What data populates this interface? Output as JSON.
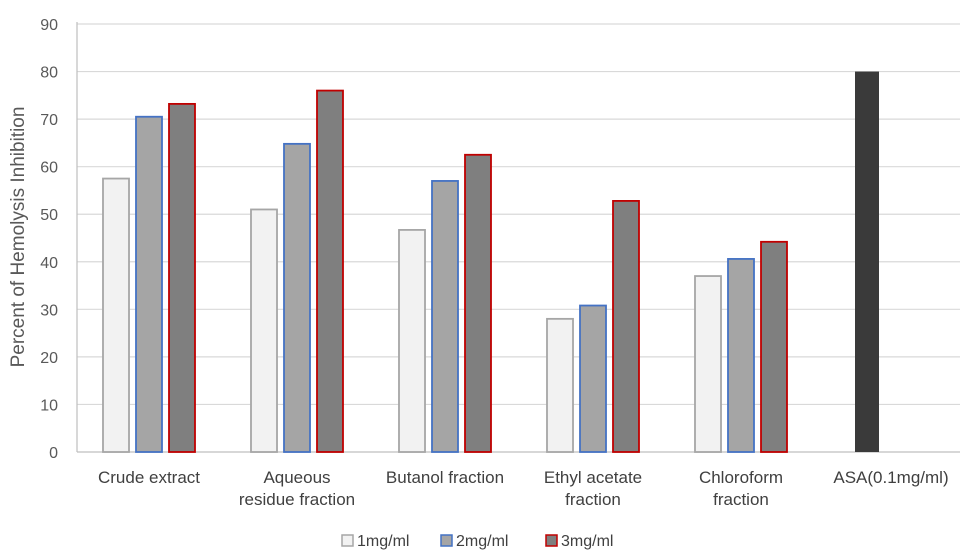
{
  "chart_data": {
    "type": "bar",
    "categories": [
      [
        "Crude extract"
      ],
      [
        "Aqueous",
        "residue fraction"
      ],
      [
        "Butanol fraction"
      ],
      [
        "Ethyl acetate",
        "fraction"
      ],
      [
        "Chloroform",
        "fraction"
      ],
      [
        "ASA(0.1mg/ml)"
      ]
    ],
    "series": [
      {
        "name": "1mg/ml",
        "fill": "#f2f2f2",
        "stroke": "#a6a6a6",
        "values": [
          57.5,
          51,
          46.7,
          28,
          37,
          null
        ]
      },
      {
        "name": "2mg/ml",
        "fill": "#a5a5a5",
        "stroke": "#4472c4",
        "values": [
          70.5,
          64.8,
          57,
          30.8,
          40.6,
          null
        ]
      },
      {
        "name": "3mg/ml",
        "fill": "#7f7f7f",
        "stroke": "#c00000",
        "values": [
          73.2,
          76,
          62.5,
          52.8,
          44.2,
          null
        ]
      }
    ],
    "reference": {
      "category_index": 5,
      "value": 80,
      "fill": "#3a3a3a"
    },
    "ylabel": "Percent of Hemolysis Inhibition",
    "ylim": [
      0,
      90
    ],
    "yticks": [
      0,
      10,
      20,
      30,
      40,
      50,
      60,
      70,
      80,
      90
    ],
    "grid": true,
    "legend": "bottom"
  }
}
